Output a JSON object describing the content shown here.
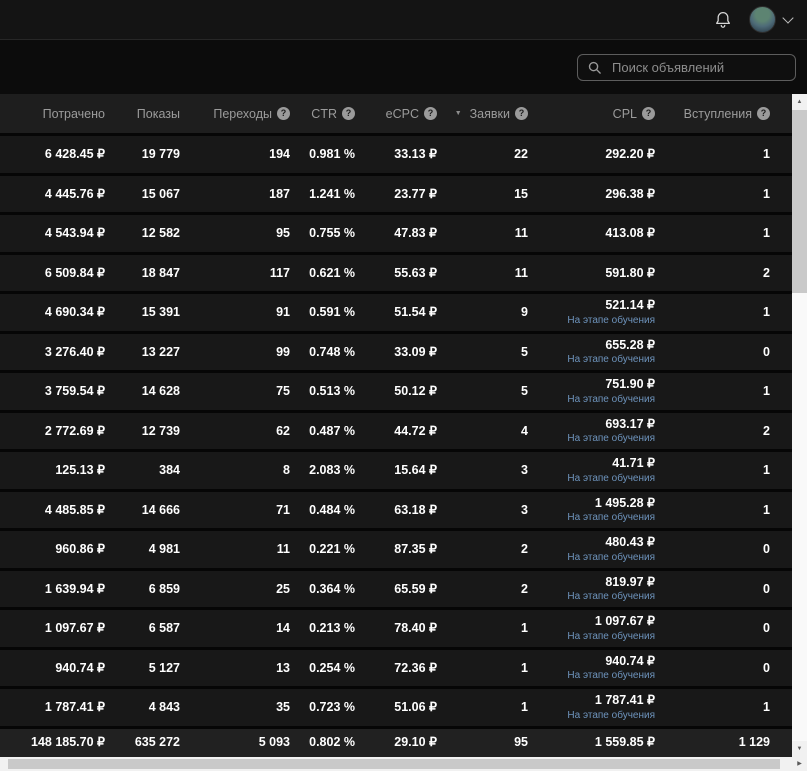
{
  "icons": {
    "bell": "bell-outline",
    "chevron_down": "chevron-down",
    "search": "magnifier",
    "help": "?",
    "sort_desc": "▼",
    "up_arrow": "▲",
    "down_arrow": "▼",
    "right_arrow": "▶"
  },
  "colors": {
    "row_bg": "#181818",
    "header_bg": "#1e1e1e",
    "totals_bg": "#212121",
    "learning_note": "#6e94bd",
    "header_text": "#9b9b9b",
    "value_text": "#ffffff"
  },
  "search": {
    "placeholder": "Поиск объявлений"
  },
  "table": {
    "columns": [
      {
        "key": "spent",
        "label": "Потрачено",
        "help": false,
        "sorted": false
      },
      {
        "key": "impressions",
        "label": "Показы",
        "help": false,
        "sorted": false
      },
      {
        "key": "clicks",
        "label": "Переходы",
        "help": true,
        "sorted": false
      },
      {
        "key": "ctr",
        "label": "CTR",
        "help": true,
        "sorted": false
      },
      {
        "key": "ecpc",
        "label": "eCPC",
        "help": true,
        "sorted": false
      },
      {
        "key": "leads",
        "label": "Заявки",
        "help": true,
        "sorted": true
      },
      {
        "key": "cpl",
        "label": "CPL",
        "help": true,
        "sorted": false
      },
      {
        "key": "joins",
        "label": "Вступления",
        "help": true,
        "sorted": false
      }
    ],
    "cpl_note_label": "На этапе обучения",
    "rows": [
      {
        "spent": "6 428.45 ₽",
        "impressions": "19 779",
        "clicks": "194",
        "ctr": "0.981 %",
        "ecpc": "33.13 ₽",
        "leads": "22",
        "cpl": "292.20 ₽",
        "cpl_note": false,
        "joins": "1"
      },
      {
        "spent": "4 445.76 ₽",
        "impressions": "15 067",
        "clicks": "187",
        "ctr": "1.241 %",
        "ecpc": "23.77 ₽",
        "leads": "15",
        "cpl": "296.38 ₽",
        "cpl_note": false,
        "joins": "1"
      },
      {
        "spent": "4 543.94 ₽",
        "impressions": "12 582",
        "clicks": "95",
        "ctr": "0.755 %",
        "ecpc": "47.83 ₽",
        "leads": "11",
        "cpl": "413.08 ₽",
        "cpl_note": false,
        "joins": "1"
      },
      {
        "spent": "6 509.84 ₽",
        "impressions": "18 847",
        "clicks": "117",
        "ctr": "0.621 %",
        "ecpc": "55.63 ₽",
        "leads": "11",
        "cpl": "591.80 ₽",
        "cpl_note": false,
        "joins": "2"
      },
      {
        "spent": "4 690.34 ₽",
        "impressions": "15 391",
        "clicks": "91",
        "ctr": "0.591 %",
        "ecpc": "51.54 ₽",
        "leads": "9",
        "cpl": "521.14 ₽",
        "cpl_note": true,
        "joins": "1"
      },
      {
        "spent": "3 276.40 ₽",
        "impressions": "13 227",
        "clicks": "99",
        "ctr": "0.748 %",
        "ecpc": "33.09 ₽",
        "leads": "5",
        "cpl": "655.28 ₽",
        "cpl_note": true,
        "joins": "0"
      },
      {
        "spent": "3 759.54 ₽",
        "impressions": "14 628",
        "clicks": "75",
        "ctr": "0.513 %",
        "ecpc": "50.12 ₽",
        "leads": "5",
        "cpl": "751.90 ₽",
        "cpl_note": true,
        "joins": "1"
      },
      {
        "spent": "2 772.69 ₽",
        "impressions": "12 739",
        "clicks": "62",
        "ctr": "0.487 %",
        "ecpc": "44.72 ₽",
        "leads": "4",
        "cpl": "693.17 ₽",
        "cpl_note": true,
        "joins": "2"
      },
      {
        "spent": "125.13 ₽",
        "impressions": "384",
        "clicks": "8",
        "ctr": "2.083 %",
        "ecpc": "15.64 ₽",
        "leads": "3",
        "cpl": "41.71 ₽",
        "cpl_note": true,
        "joins": "1"
      },
      {
        "spent": "4 485.85 ₽",
        "impressions": "14 666",
        "clicks": "71",
        "ctr": "0.484 %",
        "ecpc": "63.18 ₽",
        "leads": "3",
        "cpl": "1 495.28 ₽",
        "cpl_note": true,
        "joins": "1"
      },
      {
        "spent": "960.86 ₽",
        "impressions": "4 981",
        "clicks": "11",
        "ctr": "0.221 %",
        "ecpc": "87.35 ₽",
        "leads": "2",
        "cpl": "480.43 ₽",
        "cpl_note": true,
        "joins": "0"
      },
      {
        "spent": "1 639.94 ₽",
        "impressions": "6 859",
        "clicks": "25",
        "ctr": "0.364 %",
        "ecpc": "65.59 ₽",
        "leads": "2",
        "cpl": "819.97 ₽",
        "cpl_note": true,
        "joins": "0"
      },
      {
        "spent": "1 097.67 ₽",
        "impressions": "6 587",
        "clicks": "14",
        "ctr": "0.213 %",
        "ecpc": "78.40 ₽",
        "leads": "1",
        "cpl": "1 097.67 ₽",
        "cpl_note": true,
        "joins": "0"
      },
      {
        "spent": "940.74 ₽",
        "impressions": "5 127",
        "clicks": "13",
        "ctr": "0.254 %",
        "ecpc": "72.36 ₽",
        "leads": "1",
        "cpl": "940.74 ₽",
        "cpl_note": true,
        "joins": "0"
      },
      {
        "spent": "1 787.41 ₽",
        "impressions": "4 843",
        "clicks": "35",
        "ctr": "0.723 %",
        "ecpc": "51.06 ₽",
        "leads": "1",
        "cpl": "1 787.41 ₽",
        "cpl_note": true,
        "joins": "1"
      }
    ],
    "totals": {
      "spent": "148 185.70 ₽",
      "impressions": "635 272",
      "clicks": "5 093",
      "ctr": "0.802 %",
      "ecpc": "29.10 ₽",
      "leads": "95",
      "cpl": "1 559.85 ₽",
      "joins": "1 129"
    }
  }
}
